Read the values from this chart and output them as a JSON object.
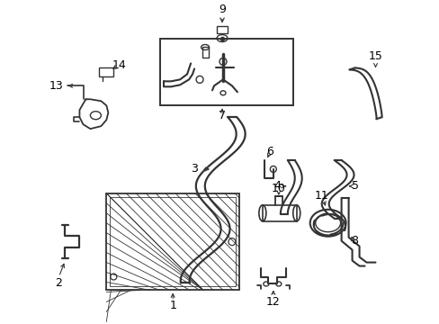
{
  "bg_color": "#ffffff",
  "lc": "#333333",
  "figsize": [
    4.89,
    3.6
  ],
  "dpi": 100
}
